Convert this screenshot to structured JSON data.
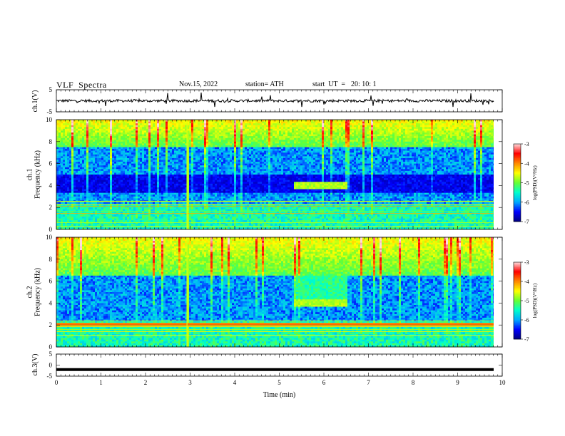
{
  "header": {
    "title": "VLF  Spectra",
    "date": "Nov.15, 2022",
    "station": "station= ATH",
    "start_label": "start  UT  =",
    "start_time": "20: 10: 1"
  },
  "chart_data": [
    {
      "type": "line",
      "panel": "ch1-waveform",
      "ylabel": "ch.1(V)",
      "ylim": [
        -5,
        5
      ],
      "yticks": [
        "5",
        "-5"
      ],
      "xlim": [
        0,
        10
      ],
      "color": "#000000",
      "baseline": 0,
      "noise_amplitude": 0.6,
      "spike_times_min": [
        1.1,
        2.5,
        3.25,
        3.55,
        4.8,
        5.5,
        7.05,
        7.1,
        8.9,
        9.3,
        9.7
      ]
    },
    {
      "type": "heatmap",
      "panel": "ch1-spectrogram",
      "ylabel": "ch.1\nFrequency  (kHz)",
      "ylabel_lines": [
        "ch.1",
        "Frequency  (kHz)"
      ],
      "ylim": [
        0,
        10
      ],
      "yticks": [
        "0",
        "2",
        "4",
        "6",
        "8",
        "10"
      ],
      "xlim": [
        0,
        10
      ],
      "xticks": [
        "0",
        "1",
        "2",
        "3",
        "4",
        "5",
        "6",
        "7",
        "8",
        "9",
        "10"
      ],
      "colorbar": {
        "label": "log(PSD)(V²/Hz)",
        "range": [
          -7,
          -3
        ],
        "ticks": [
          "-3",
          "-4",
          "-5",
          "-6",
          "-7"
        ]
      },
      "features": {
        "high_band_khz": [
          7.5,
          10
        ],
        "quiet_band_khz": [
          3.3,
          5.0
        ],
        "signal_block": {
          "t_min": [
            5.3,
            6.5
          ],
          "f_khz": [
            3.6,
            4.3
          ]
        },
        "impulse_time_min": 2.93
      }
    },
    {
      "type": "heatmap",
      "panel": "ch2-spectrogram",
      "ylabel": "ch.2\nFrequency  (kHz)",
      "ylabel_lines": [
        "ch.2",
        "Frequency  (kHz)"
      ],
      "ylim": [
        0,
        10
      ],
      "yticks": [
        "0",
        "2",
        "4",
        "6",
        "8",
        "10"
      ],
      "xlim": [
        0,
        10
      ],
      "xticks": [
        "0",
        "1",
        "2",
        "3",
        "4",
        "5",
        "6",
        "7",
        "8",
        "9",
        "10"
      ],
      "colorbar": {
        "label": "log(PSD)(V²/Hz)",
        "range": [
          -7,
          -3
        ],
        "ticks": [
          "-3",
          "-4",
          "-5",
          "-6",
          "-7"
        ]
      },
      "features": {
        "high_band_khz": [
          6.5,
          10
        ],
        "orange_line_khz": 2.0,
        "signal_block": {
          "t_min": [
            5.3,
            6.5
          ],
          "f_khz": [
            3.6,
            10
          ]
        },
        "impulse_time_min": 2.93
      }
    },
    {
      "type": "line",
      "panel": "ch3-waveform",
      "ylabel": "ch.3(V)",
      "ylim": [
        -5,
        5
      ],
      "yticks": [
        "5",
        "0",
        "-5"
      ],
      "xlim": [
        0,
        10
      ],
      "xticks": [
        "0",
        "1",
        "2",
        "3",
        "4",
        "5",
        "6",
        "7",
        "8",
        "9",
        "10"
      ],
      "xlabel": "Time  (min)",
      "color": "#000000",
      "constant_value": -2
    }
  ],
  "colors": {
    "cmap": [
      "#000080",
      "#0000ff",
      "#00aaff",
      "#00ffcc",
      "#66ff33",
      "#ffff00",
      "#ff8800",
      "#ff0000",
      "#ffdddd"
    ]
  }
}
